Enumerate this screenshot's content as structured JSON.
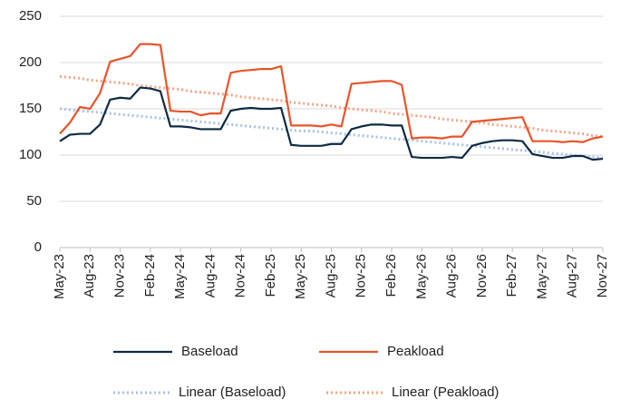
{
  "chart_data": {
    "type": "line",
    "categories": [
      "May-23",
      null,
      null,
      "Aug-23",
      null,
      null,
      "Nov-23",
      null,
      null,
      "Feb-24",
      null,
      null,
      "May-24",
      null,
      null,
      "Aug-24",
      null,
      null,
      "Nov-24",
      null,
      null,
      "Feb-25",
      null,
      null,
      "May-25",
      null,
      null,
      "Aug-25",
      null,
      null,
      "Nov-25",
      null,
      null,
      "Feb-26",
      null,
      null,
      "May-26",
      null,
      null,
      "Aug-26",
      null,
      null,
      "Nov-26",
      null,
      null,
      "Feb-27",
      null,
      null,
      "May-27",
      null,
      null,
      "Aug-27",
      null,
      null,
      "Nov-27"
    ],
    "series": [
      {
        "name": "Baseload",
        "color": "#0e2a44",
        "dash": "solid",
        "values": [
          115,
          122,
          123,
          123,
          133,
          160,
          162,
          161,
          173,
          172,
          169,
          131,
          131,
          130,
          128,
          128,
          128,
          148,
          150,
          151,
          150,
          150,
          151,
          111,
          110,
          110,
          110,
          112,
          112,
          128,
          131,
          133,
          133,
          132,
          132,
          98,
          97,
          97,
          97,
          98,
          97,
          110,
          113,
          115,
          116,
          116,
          115,
          101,
          99,
          97,
          97,
          99,
          99,
          95,
          96
        ]
      },
      {
        "name": "Peakload",
        "color": "#e8542a",
        "dash": "solid",
        "values": [
          123,
          135,
          152,
          150,
          167,
          201,
          204,
          207,
          220,
          220,
          219,
          148,
          147,
          147,
          143,
          145,
          145,
          189,
          191,
          192,
          193,
          193,
          196,
          132,
          132,
          132,
          131,
          133,
          131,
          177,
          178,
          179,
          180,
          180,
          176,
          118,
          119,
          119,
          118,
          120,
          120,
          136,
          137,
          138,
          139,
          140,
          141,
          115,
          115,
          115,
          114,
          115,
          114,
          118,
          120
        ]
      },
      {
        "name": "Linear (Baseload)",
        "color": "#a7c3e6",
        "dash": "dotted",
        "values": [
          150,
          149,
          148,
          147,
          146,
          145,
          144,
          143,
          142,
          141,
          140,
          139,
          138,
          137,
          136,
          135,
          134,
          133,
          132,
          131,
          130,
          129,
          128,
          127,
          126,
          126,
          125,
          124,
          123,
          122,
          121,
          120,
          119,
          118,
          117,
          116,
          115,
          114,
          113,
          112,
          111,
          110,
          109,
          108,
          107,
          106,
          105,
          104,
          103,
          102,
          101,
          100,
          99,
          98,
          97
        ]
      },
      {
        "name": "Linear (Peakload)",
        "color": "#f4a585",
        "dash": "dotted",
        "values": [
          185,
          184,
          183,
          181,
          180,
          179,
          178,
          177,
          175,
          174,
          173,
          172,
          171,
          169,
          168,
          167,
          166,
          165,
          163,
          162,
          161,
          160,
          159,
          157,
          156,
          155,
          154,
          153,
          151,
          150,
          149,
          148,
          147,
          145,
          144,
          143,
          142,
          141,
          139,
          138,
          137,
          136,
          135,
          133,
          132,
          131,
          130,
          129,
          127,
          126,
          125,
          124,
          123,
          121,
          120
        ]
      }
    ],
    "ylim": [
      0,
      250
    ],
    "yticks": [
      0,
      50,
      100,
      150,
      200,
      250
    ],
    "grid": true
  }
}
